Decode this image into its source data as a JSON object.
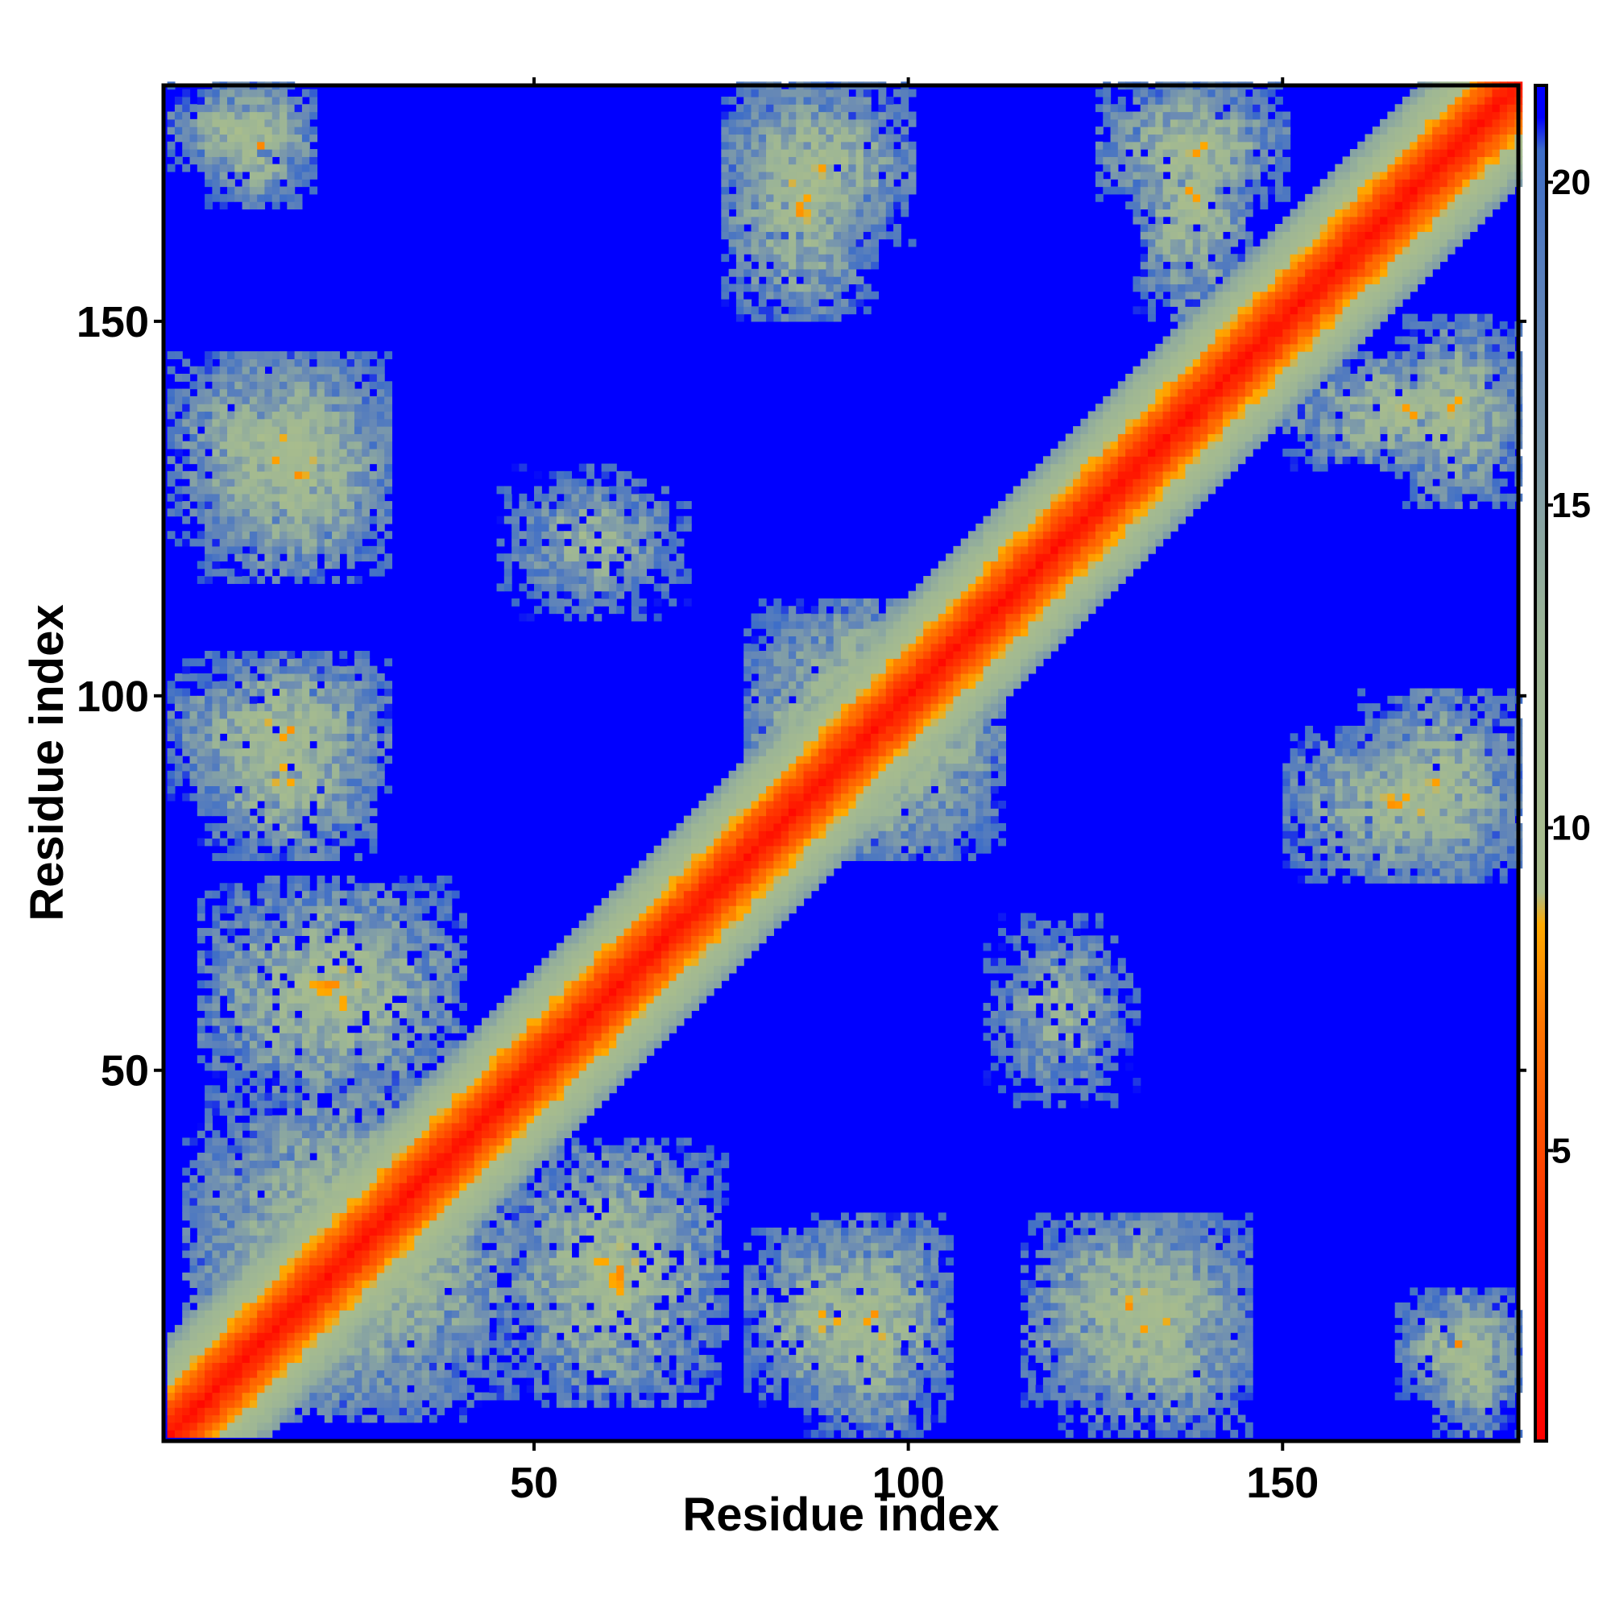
{
  "chart_data": {
    "type": "heatmap",
    "title": "",
    "xlabel": "Residue index",
    "ylabel": "Residue index",
    "n_residues": 181,
    "xlim": [
      1,
      181
    ],
    "ylim": [
      1,
      181
    ],
    "x_ticks": [
      50,
      100,
      150
    ],
    "y_ticks": [
      50,
      100,
      150
    ],
    "colorbar": {
      "ticks": [
        5,
        10,
        15,
        20
      ],
      "range": [
        0.5,
        21.5
      ],
      "stops": [
        {
          "value": 0.5,
          "color": "#ff0000"
        },
        {
          "value": 4.0,
          "color": "#ff3300"
        },
        {
          "value": 7.0,
          "color": "#ff7700"
        },
        {
          "value": 8.5,
          "color": "#ffaa00"
        },
        {
          "value": 9.0,
          "color": "#a9bd8c"
        },
        {
          "value": 13.0,
          "color": "#9cb596"
        },
        {
          "value": 17.0,
          "color": "#6d8db3"
        },
        {
          "value": 20.5,
          "color": "#3d6dc8"
        },
        {
          "value": 21.0,
          "color": "#0000ff"
        }
      ]
    },
    "value_cap": 21,
    "contact_regions": [
      {
        "region": "main-diagonal",
        "x": [
          1,
          181
        ],
        "y": [
          1,
          181
        ],
        "min_distance": 1
      },
      {
        "region": "antiparallel-band-a",
        "x": [
          3,
          50
        ],
        "y": [
          5,
          42
        ],
        "min_distance": 6
      },
      {
        "region": "antiparallel-band-b",
        "x": [
          45,
          75
        ],
        "y": [
          5,
          40
        ],
        "min_distance": 6
      },
      {
        "region": "antiparallel-band-c",
        "x": [
          80,
          110
        ],
        "y": [
          78,
          112
        ],
        "min_distance": 5
      },
      {
        "region": "cluster-d",
        "x": [
          78,
          100
        ],
        "y": [
          5,
          28
        ],
        "min_distance": 6
      },
      {
        "region": "cluster-e",
        "x": [
          115,
          145
        ],
        "y": [
          5,
          30
        ],
        "min_distance": 6
      },
      {
        "region": "cluster-f",
        "x": [
          165,
          181
        ],
        "y": [
          5,
          20
        ],
        "min_distance": 6
      },
      {
        "region": "cluster-g",
        "x": [
          1,
          30
        ],
        "y": [
          85,
          105
        ],
        "min_distance": 6
      },
      {
        "region": "cluster-h",
        "x": [
          1,
          30
        ],
        "y": [
          120,
          145
        ],
        "min_distance": 6
      },
      {
        "region": "cluster-i",
        "x": [
          1,
          20
        ],
        "y": [
          170,
          181
        ],
        "min_distance": 6
      },
      {
        "region": "cluster-j",
        "x": [
          75,
          100
        ],
        "y": [
          160,
          181
        ],
        "min_distance": 6
      },
      {
        "region": "cluster-k",
        "x": [
          125,
          150
        ],
        "y": [
          165,
          181
        ],
        "min_distance": 6
      },
      {
        "region": "cluster-l",
        "x": [
          150,
          181
        ],
        "y": [
          130,
          145
        ],
        "min_distance": 6
      },
      {
        "region": "cluster-m",
        "x": [
          150,
          181
        ],
        "y": [
          75,
          95
        ],
        "min_distance": 6
      },
      {
        "region": "cluster-n",
        "x": [
          110,
          130
        ],
        "y": [
          45,
          70
        ],
        "min_distance": 8
      }
    ]
  }
}
